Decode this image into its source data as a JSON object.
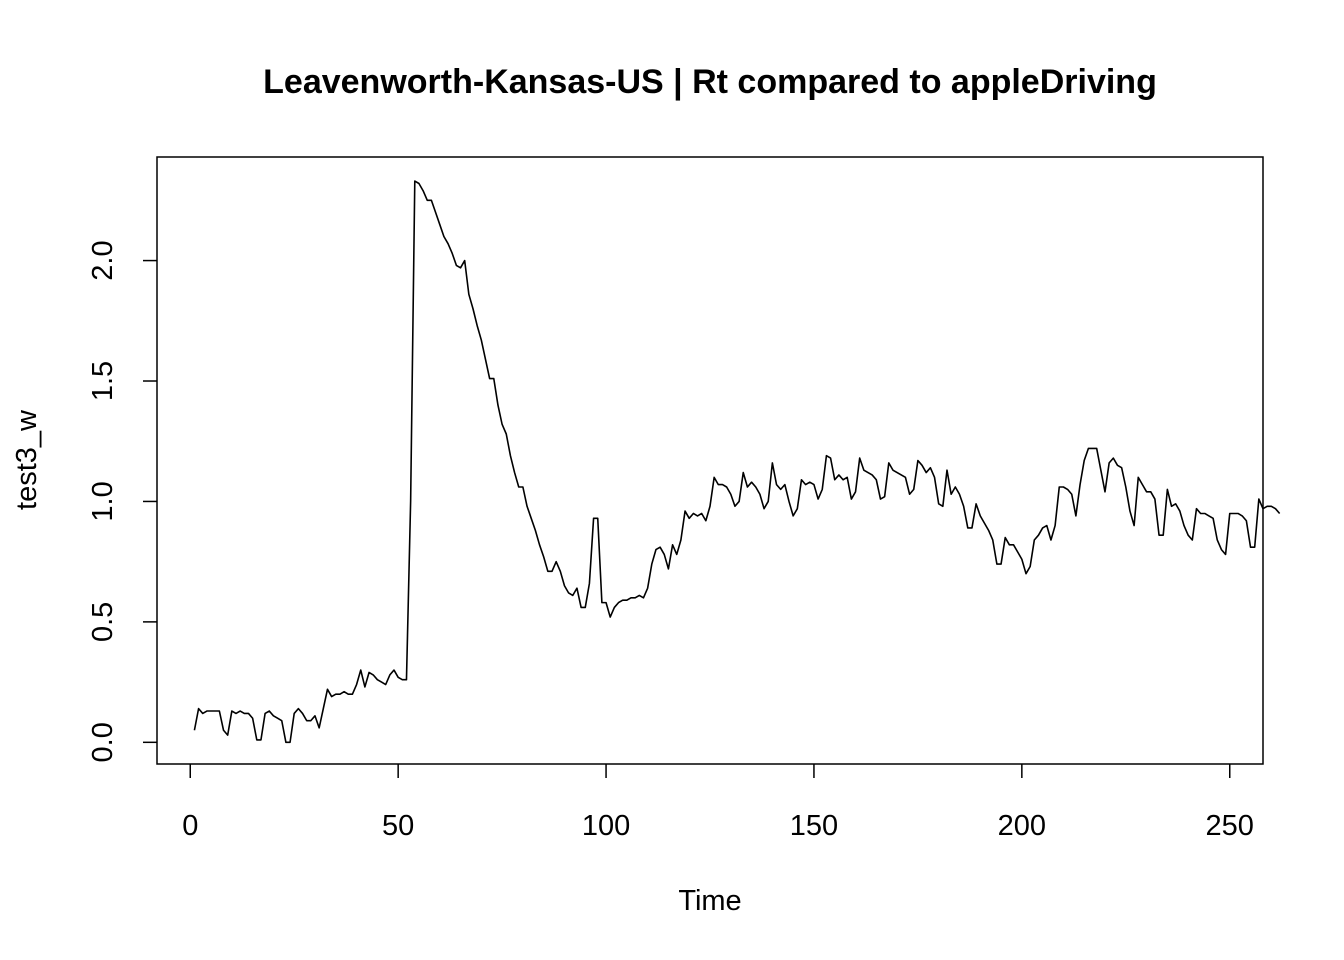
{
  "chart_data": {
    "type": "line",
    "title": "Leavenworth-Kansas-US | Rt compared to appleDriving",
    "xlabel": "Time",
    "ylabel": "test3_w",
    "xlim": [
      -8,
      258
    ],
    "ylim": [
      -0.09,
      2.43
    ],
    "x_ticks": [
      "0",
      "50",
      "100",
      "150",
      "200",
      "250"
    ],
    "y_ticks": [
      "0.0",
      "0.5",
      "1.0",
      "1.5",
      "2.0"
    ],
    "grid": false,
    "legend": "none",
    "colors": {
      "line": "#000000",
      "frame": "#000000",
      "background": "#ffffff"
    },
    "series": [
      {
        "start_x": 1,
        "values": [
          0.05,
          0.14,
          0.12,
          0.13,
          0.13,
          0.13,
          0.13,
          0.05,
          0.03,
          0.13,
          0.12,
          0.13,
          0.12,
          0.12,
          0.1,
          0.01,
          0.01,
          0.12,
          0.13,
          0.11,
          0.1,
          0.09,
          0.0,
          0.0,
          0.12,
          0.14,
          0.12,
          0.09,
          0.09,
          0.11,
          0.06,
          0.14,
          0.22,
          0.19,
          0.2,
          0.2,
          0.21,
          0.2,
          0.2,
          0.24,
          0.3,
          0.23,
          0.29,
          0.28,
          0.26,
          0.25,
          0.24,
          0.28,
          0.3,
          0.27,
          0.26,
          0.26,
          1.0,
          2.33,
          2.32,
          2.29,
          2.25,
          2.25,
          2.2,
          2.15,
          2.1,
          2.07,
          2.03,
          1.98,
          1.97,
          2.0,
          1.86,
          1.8,
          1.73,
          1.67,
          1.59,
          1.51,
          1.51,
          1.4,
          1.32,
          1.28,
          1.19,
          1.12,
          1.06,
          1.06,
          0.98,
          0.93,
          0.88,
          0.82,
          0.77,
          0.71,
          0.71,
          0.75,
          0.71,
          0.65,
          0.62,
          0.61,
          0.64,
          0.56,
          0.56,
          0.66,
          0.93,
          0.93,
          0.58,
          0.58,
          0.52,
          0.56,
          0.58,
          0.59,
          0.59,
          0.6,
          0.6,
          0.61,
          0.6,
          0.64,
          0.74,
          0.8,
          0.81,
          0.78,
          0.72,
          0.82,
          0.78,
          0.84,
          0.96,
          0.93,
          0.95,
          0.94,
          0.95,
          0.92,
          0.98,
          1.1,
          1.07,
          1.07,
          1.06,
          1.03,
          0.98,
          1.0,
          1.12,
          1.06,
          1.08,
          1.06,
          1.03,
          0.97,
          1.0,
          1.16,
          1.07,
          1.05,
          1.07,
          1.0,
          0.94,
          0.97,
          1.09,
          1.07,
          1.08,
          1.07,
          1.01,
          1.05,
          1.19,
          1.18,
          1.09,
          1.11,
          1.09,
          1.1,
          1.01,
          1.04,
          1.18,
          1.13,
          1.12,
          1.11,
          1.09,
          1.01,
          1.02,
          1.16,
          1.13,
          1.12,
          1.11,
          1.1,
          1.03,
          1.05,
          1.17,
          1.15,
          1.12,
          1.14,
          1.1,
          0.99,
          0.98,
          1.13,
          1.03,
          1.06,
          1.03,
          0.98,
          0.89,
          0.89,
          0.99,
          0.94,
          0.91,
          0.88,
          0.84,
          0.74,
          0.74,
          0.85,
          0.82,
          0.82,
          0.79,
          0.76,
          0.7,
          0.73,
          0.84,
          0.86,
          0.89,
          0.9,
          0.84,
          0.9,
          1.06,
          1.06,
          1.05,
          1.03,
          0.94,
          1.07,
          1.17,
          1.22,
          1.22,
          1.22,
          1.13,
          1.04,
          1.16,
          1.18,
          1.15,
          1.14,
          1.06,
          0.96,
          0.9,
          1.1,
          1.07,
          1.04,
          1.04,
          1.01,
          0.86,
          0.86,
          1.05,
          0.98,
          0.99,
          0.96,
          0.9,
          0.86,
          0.84,
          0.97,
          0.95,
          0.95,
          0.94,
          0.93,
          0.84,
          0.8,
          0.78,
          0.95,
          0.95,
          0.95,
          0.94,
          0.92,
          0.81,
          0.81,
          1.01,
          0.97,
          0.98,
          0.98,
          0.97,
          0.95
        ]
      }
    ]
  }
}
